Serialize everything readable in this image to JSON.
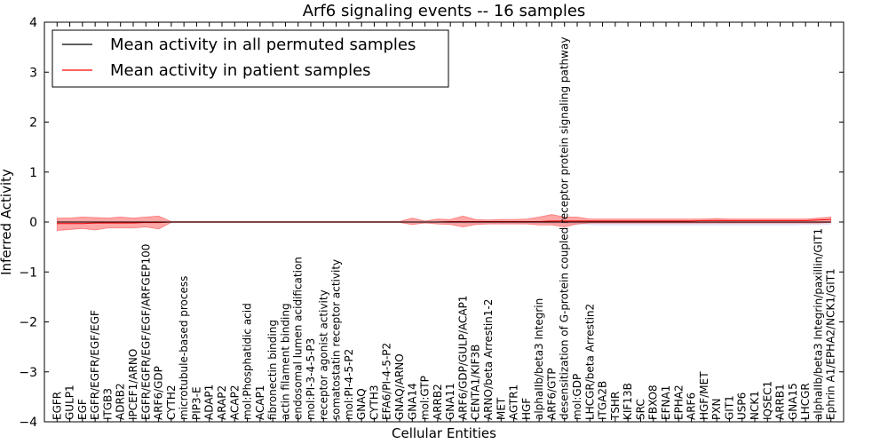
{
  "chart_data": {
    "type": "line",
    "title": "Arf6 signaling events -- 16 samples",
    "xlabel": "Cellular Entities",
    "ylabel": "Inferred Activity",
    "ylim": [
      -4,
      4
    ],
    "yticks": [
      -4,
      -3,
      -2,
      -1,
      0,
      1,
      2,
      3,
      4
    ],
    "ytick_labels": [
      "−4",
      "−3",
      "−2",
      "−1",
      "0",
      "1",
      "2",
      "3",
      "4"
    ],
    "grid": false,
    "legend_position": "top-left",
    "categories": [
      "EGFR",
      "GULP1",
      "EGF",
      "EGFR/EGFR/EGF/EGF",
      "ITGB3",
      "ADRB2",
      "IPCEF1/ARNO",
      "EGFR/EGFR/EGF/EGF/ARFGEP100",
      "ARF6/GDP",
      "CYTH2",
      "microtubule-based process",
      "PIP3-E",
      "ADAP1",
      "ARAP2",
      "ACAP2",
      "mol:Phosphatidic acid",
      "ACAP1",
      "fibronectin binding",
      "actin filament binding",
      "endosomal lumen acidification",
      "mol:PI-3-4-5-P3",
      "receptor agonist activity",
      "somatostatin receptor activity",
      "mol:PI-4-5-P2",
      "GNAQ",
      "CYTH3",
      "EFA6/PI-4-5-P2",
      "GNAQ/ARNO",
      "GNA14",
      "mol:GTP",
      "ARRB2",
      "GNA11",
      "ARF6/GDP/GULP/ACAP1",
      "CENTA1/KIF3B",
      "ARNO/beta Arrestin1-2",
      "MET",
      "AGTR1",
      "HGF",
      "alphaIIb/beta3 Integrin",
      "ARF6/GTP",
      "desensitization of G-protein coupled receptor protein signaling pathway",
      "mol:GDP",
      "LHCGR/beta Arrestin2",
      "ITGA2B",
      "TSHR",
      "KIF13B",
      "SRC",
      "FBXO8",
      "EFNA1",
      "EPHA2",
      "ARF6",
      "HGF/MET",
      "PXN",
      "GIT1",
      "USP6",
      "NCK1",
      "IQSEC1",
      "ARRB1",
      "GNA15",
      "LHCGR",
      "alphaIIb/beta3 Integrin/paxillin/GIT1",
      "Ephrin A1/EPHA2/NCK1/GIT1"
    ],
    "series": [
      {
        "name": "Mean activity in all permuted samples",
        "color": "#000000",
        "values": [
          0,
          0,
          0,
          0,
          0,
          0,
          0,
          0,
          0,
          0,
          0,
          0,
          0,
          0,
          0,
          0,
          0,
          0,
          0,
          0,
          0,
          0,
          0,
          0,
          0,
          0,
          0,
          0,
          0,
          0,
          0,
          0,
          0,
          0,
          0,
          0,
          0,
          0,
          0,
          0,
          0,
          0,
          0,
          0,
          0,
          0,
          0,
          0,
          0,
          0,
          0,
          0,
          0,
          0,
          0,
          0,
          0,
          0,
          0,
          0,
          0,
          0
        ],
        "band_upper": [
          0.01,
          0.01,
          0.01,
          0.01,
          0.01,
          0.01,
          0.01,
          0.01,
          0.01,
          0.01,
          0.01,
          0.01,
          0.01,
          0.01,
          0.01,
          0.01,
          0.01,
          0.01,
          0.01,
          0.01,
          0.01,
          0.01,
          0.01,
          0.01,
          0.01,
          0.01,
          0.01,
          0.01,
          0.01,
          0.01,
          0.01,
          0.01,
          0.01,
          0.01,
          0.01,
          0.01,
          0.01,
          0.01,
          0.01,
          0.01,
          0.01,
          0.01,
          0.01,
          0.01,
          0.01,
          0.01,
          0.01,
          0.01,
          0.01,
          0.01,
          0.01,
          0.01,
          0.01,
          0.01,
          0.01,
          0.01,
          0.01,
          0.01,
          0.01,
          0.01,
          0.01,
          0.01
        ],
        "band_lower": [
          -0.02,
          -0.02,
          -0.02,
          -0.02,
          -0.02,
          -0.02,
          -0.02,
          -0.02,
          -0.02,
          -0.01,
          -0.01,
          -0.01,
          -0.01,
          -0.01,
          -0.01,
          -0.01,
          -0.01,
          -0.01,
          -0.01,
          -0.01,
          -0.01,
          -0.01,
          -0.01,
          -0.01,
          -0.01,
          -0.01,
          -0.01,
          -0.01,
          -0.02,
          -0.02,
          -0.02,
          -0.03,
          -0.03,
          -0.03,
          -0.03,
          -0.03,
          -0.03,
          -0.03,
          -0.03,
          -0.04,
          -0.04,
          -0.05,
          -0.06,
          -0.07,
          -0.07,
          -0.07,
          -0.07,
          -0.07,
          -0.07,
          -0.07,
          -0.07,
          -0.07,
          -0.07,
          -0.07,
          -0.07,
          -0.07,
          -0.07,
          -0.07,
          -0.07,
          -0.06,
          -0.06,
          -0.05
        ]
      },
      {
        "name": "Mean activity in patient samples",
        "color": "#ff0000",
        "values": [
          -0.03,
          -0.03,
          -0.03,
          -0.02,
          -0.02,
          -0.02,
          -0.02,
          -0.01,
          -0.01,
          0,
          0,
          0,
          0,
          0,
          0,
          0,
          0,
          0,
          0,
          0,
          0,
          0,
          0,
          0,
          0,
          0,
          0,
          0,
          0,
          0,
          0,
          0.01,
          0.01,
          0.01,
          0.01,
          0.01,
          0.01,
          0.01,
          0.01,
          0.02,
          0.02,
          0.02,
          0.02,
          0.02,
          0.02,
          0.02,
          0.02,
          0.02,
          0.02,
          0.02,
          0.02,
          0.03,
          0.03,
          0.03,
          0.03,
          0.03,
          0.03,
          0.03,
          0.03,
          0.03,
          0.04,
          0.05
        ],
        "band_upper": [
          0.08,
          0.08,
          0.1,
          0.09,
          0.08,
          0.1,
          0.08,
          0.1,
          0.12,
          0.01,
          0.01,
          0.01,
          0.01,
          0.01,
          0.01,
          0.01,
          0.01,
          0.01,
          0.01,
          0.01,
          0.01,
          0.01,
          0.01,
          0.01,
          0.01,
          0.01,
          0.01,
          0.01,
          0.08,
          0.02,
          0.06,
          0.05,
          0.12,
          0.05,
          0.04,
          0.05,
          0.05,
          0.06,
          0.1,
          0.15,
          0.1,
          0.1,
          0.06,
          0.06,
          0.06,
          0.06,
          0.06,
          0.06,
          0.06,
          0.06,
          0.06,
          0.06,
          0.07,
          0.06,
          0.06,
          0.06,
          0.06,
          0.06,
          0.06,
          0.06,
          0.08,
          0.1
        ],
        "band_lower": [
          -0.17,
          -0.15,
          -0.13,
          -0.16,
          -0.12,
          -0.12,
          -0.12,
          -0.1,
          -0.14,
          -0.01,
          -0.01,
          -0.01,
          -0.01,
          -0.01,
          -0.01,
          -0.01,
          -0.01,
          -0.01,
          -0.01,
          -0.01,
          -0.01,
          -0.01,
          -0.01,
          -0.01,
          -0.01,
          -0.01,
          -0.01,
          -0.01,
          -0.05,
          -0.02,
          -0.04,
          -0.05,
          -0.1,
          -0.05,
          -0.04,
          -0.04,
          -0.04,
          -0.04,
          -0.06,
          -0.06,
          -0.1,
          -0.04,
          -0.02,
          -0.02,
          -0.02,
          -0.02,
          -0.02,
          -0.02,
          -0.02,
          -0.02,
          -0.02,
          -0.02,
          -0.02,
          -0.02,
          -0.02,
          -0.02,
          -0.02,
          -0.02,
          -0.02,
          -0.02,
          -0.02,
          -0.01
        ]
      }
    ],
    "band_color": "#ff0000"
  }
}
